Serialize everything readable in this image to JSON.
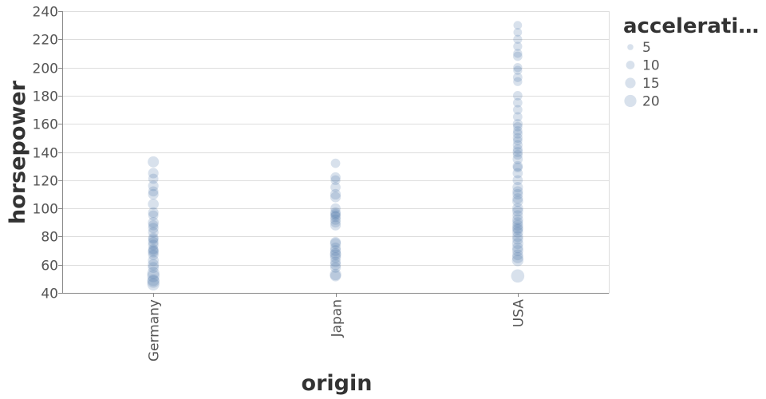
{
  "chart_data": {
    "type": "scatter",
    "xlabel": "origin",
    "ylabel": "horsepower",
    "categories": [
      "Germany",
      "Japan",
      "USA"
    ],
    "ylim": [
      40,
      240
    ],
    "yticks": [
      40,
      60,
      80,
      100,
      120,
      140,
      160,
      180,
      200,
      220,
      240
    ],
    "grid": true,
    "size_legend": {
      "title": "accelerati…",
      "values": [
        5,
        10,
        15,
        20
      ],
      "labels": [
        "5",
        "10",
        "15",
        "20"
      ],
      "position": "right"
    },
    "colors": {
      "point": "#4c78a8",
      "grid": "#dddddd",
      "axis": "#888888"
    },
    "series": [
      {
        "x": "Germany",
        "points": [
          {
            "hp": 133,
            "acc": 17
          },
          {
            "hp": 125,
            "acc": 15
          },
          {
            "hp": 121,
            "acc": 14
          },
          {
            "hp": 116,
            "acc": 15
          },
          {
            "hp": 112,
            "acc": 14
          },
          {
            "hp": 110,
            "acc": 15
          },
          {
            "hp": 103,
            "acc": 16
          },
          {
            "hp": 97,
            "acc": 15
          },
          {
            "hp": 95,
            "acc": 14
          },
          {
            "hp": 90,
            "acc": 16
          },
          {
            "hp": 88,
            "acc": 14
          },
          {
            "hp": 86,
            "acc": 15
          },
          {
            "hp": 83,
            "acc": 15
          },
          {
            "hp": 79,
            "acc": 15
          },
          {
            "hp": 78,
            "acc": 14
          },
          {
            "hp": 76,
            "acc": 15
          },
          {
            "hp": 74,
            "acc": 15
          },
          {
            "hp": 71,
            "acc": 14
          },
          {
            "hp": 70,
            "acc": 15
          },
          {
            "hp": 69,
            "acc": 16
          },
          {
            "hp": 67,
            "acc": 15
          },
          {
            "hp": 63,
            "acc": 16
          },
          {
            "hp": 60,
            "acc": 17
          },
          {
            "hp": 58,
            "acc": 16
          },
          {
            "hp": 54,
            "acc": 20
          },
          {
            "hp": 52,
            "acc": 21
          },
          {
            "hp": 49,
            "acc": 19
          },
          {
            "hp": 48,
            "acc": 21
          },
          {
            "hp": 46,
            "acc": 20
          }
        ]
      },
      {
        "x": "Japan",
        "points": [
          {
            "hp": 132,
            "acc": 12
          },
          {
            "hp": 122,
            "acc": 14
          },
          {
            "hp": 120,
            "acc": 13
          },
          {
            "hp": 115,
            "acc": 14
          },
          {
            "hp": 110,
            "acc": 15
          },
          {
            "hp": 108,
            "acc": 15
          },
          {
            "hp": 100,
            "acc": 14
          },
          {
            "hp": 97,
            "acc": 15
          },
          {
            "hp": 96,
            "acc": 14
          },
          {
            "hp": 95,
            "acc": 13
          },
          {
            "hp": 94,
            "acc": 15
          },
          {
            "hp": 92,
            "acc": 15
          },
          {
            "hp": 90,
            "acc": 14
          },
          {
            "hp": 88,
            "acc": 15
          },
          {
            "hp": 76,
            "acc": 15
          },
          {
            "hp": 75,
            "acc": 16
          },
          {
            "hp": 72,
            "acc": 15
          },
          {
            "hp": 70,
            "acc": 16
          },
          {
            "hp": 68,
            "acc": 16
          },
          {
            "hp": 67,
            "acc": 17
          },
          {
            "hp": 65,
            "acc": 16
          },
          {
            "hp": 62,
            "acc": 15
          },
          {
            "hp": 60,
            "acc": 16
          },
          {
            "hp": 58,
            "acc": 15
          },
          {
            "hp": 53,
            "acc": 18
          },
          {
            "hp": 52,
            "acc": 16
          }
        ]
      },
      {
        "x": "USA",
        "points": [
          {
            "hp": 230,
            "acc": 10
          },
          {
            "hp": 225,
            "acc": 10
          },
          {
            "hp": 220,
            "acc": 11
          },
          {
            "hp": 215,
            "acc": 11
          },
          {
            "hp": 210,
            "acc": 11
          },
          {
            "hp": 208,
            "acc": 12
          },
          {
            "hp": 200,
            "acc": 11
          },
          {
            "hp": 198,
            "acc": 11
          },
          {
            "hp": 193,
            "acc": 12
          },
          {
            "hp": 190,
            "acc": 11
          },
          {
            "hp": 180,
            "acc": 12
          },
          {
            "hp": 175,
            "acc": 12
          },
          {
            "hp": 170,
            "acc": 12
          },
          {
            "hp": 165,
            "acc": 12
          },
          {
            "hp": 160,
            "acc": 13
          },
          {
            "hp": 158,
            "acc": 12
          },
          {
            "hp": 155,
            "acc": 12
          },
          {
            "hp": 153,
            "acc": 13
          },
          {
            "hp": 150,
            "acc": 13
          },
          {
            "hp": 148,
            "acc": 12
          },
          {
            "hp": 145,
            "acc": 13
          },
          {
            "hp": 142,
            "acc": 13
          },
          {
            "hp": 140,
            "acc": 14
          },
          {
            "hp": 138,
            "acc": 13
          },
          {
            "hp": 135,
            "acc": 14
          },
          {
            "hp": 130,
            "acc": 14
          },
          {
            "hp": 129,
            "acc": 13
          },
          {
            "hp": 125,
            "acc": 14
          },
          {
            "hp": 120,
            "acc": 14
          },
          {
            "hp": 115,
            "acc": 15
          },
          {
            "hp": 112,
            "acc": 15
          },
          {
            "hp": 110,
            "acc": 15
          },
          {
            "hp": 107,
            "acc": 15
          },
          {
            "hp": 105,
            "acc": 16
          },
          {
            "hp": 100,
            "acc": 16
          },
          {
            "hp": 98,
            "acc": 16
          },
          {
            "hp": 95,
            "acc": 15
          },
          {
            "hp": 92,
            "acc": 16
          },
          {
            "hp": 90,
            "acc": 15
          },
          {
            "hp": 88,
            "acc": 16
          },
          {
            "hp": 86,
            "acc": 16
          },
          {
            "hp": 85,
            "acc": 15
          },
          {
            "hp": 83,
            "acc": 16
          },
          {
            "hp": 80,
            "acc": 16
          },
          {
            "hp": 78,
            "acc": 16
          },
          {
            "hp": 75,
            "acc": 17
          },
          {
            "hp": 72,
            "acc": 16
          },
          {
            "hp": 70,
            "acc": 17
          },
          {
            "hp": 67,
            "acc": 16
          },
          {
            "hp": 65,
            "acc": 17
          },
          {
            "hp": 63,
            "acc": 18
          },
          {
            "hp": 52,
            "acc": 24
          }
        ]
      }
    ]
  }
}
